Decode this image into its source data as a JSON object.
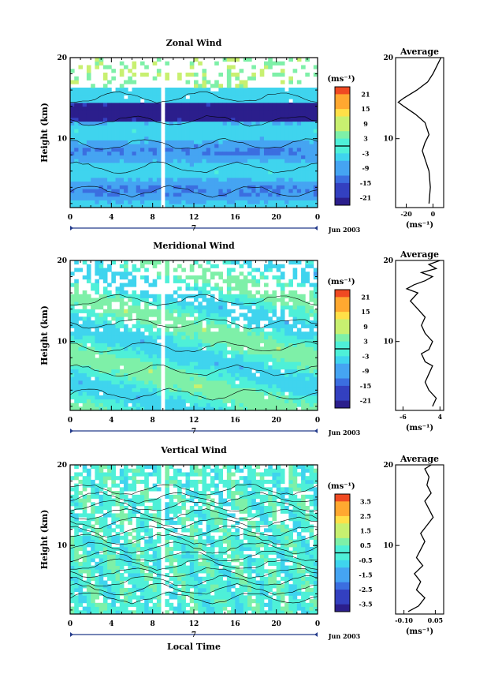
{
  "figure": {
    "x_axis_title": "Local Time",
    "date_label": "Jun 2003",
    "day_label": "7",
    "unit_label": "(ms⁻¹)",
    "height_label": "Height (km)",
    "average_title": "Average"
  },
  "chart_data": [
    {
      "type": "heatmap",
      "title": "Zonal Wind",
      "xlabel": "",
      "ylabel": "Height (km)",
      "x_ticks": [
        "0",
        "4",
        "8",
        "12",
        "16",
        "20",
        "0"
      ],
      "y_ticks": [
        "20",
        "10"
      ],
      "xlim": [
        0,
        24
      ],
      "ylim": [
        1.5,
        20
      ],
      "colorbar": {
        "unit": "(ms⁻¹)",
        "ticks": [
          "21",
          "15",
          "9",
          "3",
          "-3",
          "-9",
          "-15",
          "-21"
        ],
        "range": [
          -24,
          24
        ]
      },
      "data_gap_hour": 9,
      "average": {
        "title": "Average",
        "xlabel": "(ms⁻¹)",
        "x_ticks": [
          "-20",
          "0"
        ],
        "xlim": [
          -28,
          8
        ],
        "profile": [
          [
            -3,
            2
          ],
          [
            -2,
            4
          ],
          [
            -3,
            6
          ],
          [
            -6,
            7.5
          ],
          [
            -8,
            8.5
          ],
          [
            -6,
            9.5
          ],
          [
            -3,
            10.5
          ],
          [
            -6,
            12
          ],
          [
            -13,
            13
          ],
          [
            -22,
            14
          ],
          [
            -26,
            14.5
          ],
          [
            -22,
            15
          ],
          [
            -12,
            16
          ],
          [
            -4,
            17
          ],
          [
            0,
            18
          ],
          [
            3,
            19
          ],
          [
            6,
            20
          ]
        ]
      }
    },
    {
      "type": "heatmap",
      "title": "Meridional Wind",
      "xlabel": "",
      "ylabel": "Height (km)",
      "x_ticks": [
        "0",
        "4",
        "8",
        "12",
        "16",
        "20",
        "0"
      ],
      "y_ticks": [
        "20",
        "10"
      ],
      "xlim": [
        0,
        24
      ],
      "ylim": [
        1.5,
        20
      ],
      "colorbar": {
        "unit": "(ms⁻¹)",
        "ticks": [
          "21",
          "15",
          "9",
          "3",
          "-3",
          "-9",
          "-15",
          "-21"
        ],
        "range": [
          -24,
          24
        ]
      },
      "data_gap_hour": 9,
      "average": {
        "title": "Average",
        "xlabel": "(ms⁻¹)",
        "x_ticks": [
          "-6",
          "4"
        ],
        "xlim": [
          -8,
          5
        ],
        "profile": [
          [
            2,
            2
          ],
          [
            3,
            3
          ],
          [
            1,
            4
          ],
          [
            0,
            5
          ],
          [
            1,
            6
          ],
          [
            2,
            7
          ],
          [
            0,
            7.5
          ],
          [
            -1,
            8.5
          ],
          [
            1,
            9
          ],
          [
            2,
            10
          ],
          [
            0,
            11
          ],
          [
            -1,
            12
          ],
          [
            0,
            13
          ],
          [
            -2,
            14
          ],
          [
            -4,
            15
          ],
          [
            -2,
            16
          ],
          [
            -5,
            16.5
          ],
          [
            -3,
            17
          ],
          [
            0,
            17.5
          ],
          [
            2,
            18
          ],
          [
            -1,
            18.5
          ],
          [
            3,
            19
          ],
          [
            1,
            19.5
          ],
          [
            4,
            20
          ]
        ]
      }
    },
    {
      "type": "heatmap",
      "title": "Vertical Wind",
      "xlabel": "Local Time",
      "ylabel": "Height (km)",
      "x_ticks": [
        "0",
        "4",
        "8",
        "12",
        "16",
        "20",
        "0"
      ],
      "y_ticks": [
        "20",
        "10"
      ],
      "xlim": [
        0,
        24
      ],
      "ylim": [
        1.5,
        20
      ],
      "colorbar": {
        "unit": "(ms⁻¹)",
        "ticks": [
          "3.5",
          "2.5",
          "1.5",
          "0.5",
          "-0.5",
          "-1.5",
          "-2.5",
          "-3.5"
        ],
        "range": [
          -4,
          4
        ]
      },
      "data_gap_hour": 9,
      "average": {
        "title": "Average",
        "xlabel": "(ms⁻¹)",
        "x_ticks": [
          "-0.10",
          "0.05"
        ],
        "xlim": [
          -0.14,
          0.09
        ],
        "profile": [
          [
            -0.08,
            1.8
          ],
          [
            -0.03,
            2.5
          ],
          [
            0.0,
            3.5
          ],
          [
            -0.04,
            4.5
          ],
          [
            -0.02,
            5.5
          ],
          [
            -0.05,
            6.5
          ],
          [
            -0.01,
            7.5
          ],
          [
            -0.04,
            8.5
          ],
          [
            -0.02,
            9.5
          ],
          [
            0.0,
            10.5
          ],
          [
            -0.02,
            11.5
          ],
          [
            0.01,
            12.5
          ],
          [
            0.04,
            13.5
          ],
          [
            0.02,
            14.5
          ],
          [
            0.0,
            15.5
          ],
          [
            0.03,
            16.5
          ],
          [
            0.01,
            17.5
          ],
          [
            0.02,
            18.5
          ],
          [
            0.0,
            19.5
          ],
          [
            0.03,
            20
          ]
        ]
      }
    }
  ]
}
